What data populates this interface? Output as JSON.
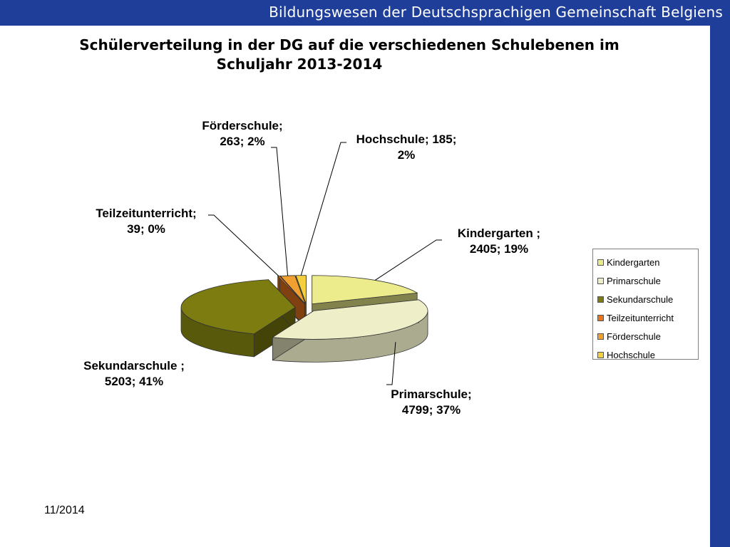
{
  "header": {
    "title": "Bildungswesen der Deutschsprachigen Gemeinschaft Belgiens"
  },
  "footer": {
    "date": "11/2014"
  },
  "colors": {
    "bar": "#1e3e9a"
  },
  "chart_data": {
    "type": "pie",
    "title_line1": "Schülerverteilung in der DG auf die verschiedenen Schulebenen im",
    "title_line2": "Schuljahr 2013-2014",
    "legend_position": "right",
    "slices": [
      {
        "name": "Kindergarten",
        "value": 2405,
        "percent": "19%",
        "color": "#ecec8c",
        "label_lines": [
          "Kindergarten ;",
          "2405; 19%"
        ]
      },
      {
        "name": "Primarschule",
        "value": 4799,
        "percent": "37%",
        "color": "#eeeec8",
        "label_lines": [
          "Primarschule;",
          "4799; 37%"
        ]
      },
      {
        "name": "Sekundarschule",
        "value": 5203,
        "percent": "41%",
        "color": "#7c7c10",
        "label_lines": [
          "Sekundarschule ;",
          "5203; 41%"
        ]
      },
      {
        "name": "Teilzeitunterricht",
        "value": 39,
        "percent": "0%",
        "color": "#e8741c",
        "label_lines": [
          "Teilzeitunterricht;",
          "39; 0%"
        ]
      },
      {
        "name": "Förderschule",
        "value": 263,
        "percent": "2%",
        "color": "#f0a030",
        "label_lines": [
          "Förderschule;",
          "263; 2%"
        ]
      },
      {
        "name": "Hochschule",
        "value": 185,
        "percent": "2%",
        "color": "#f4d040",
        "label_lines": [
          "Hochschule; 185;",
          "2%"
        ]
      }
    ]
  }
}
